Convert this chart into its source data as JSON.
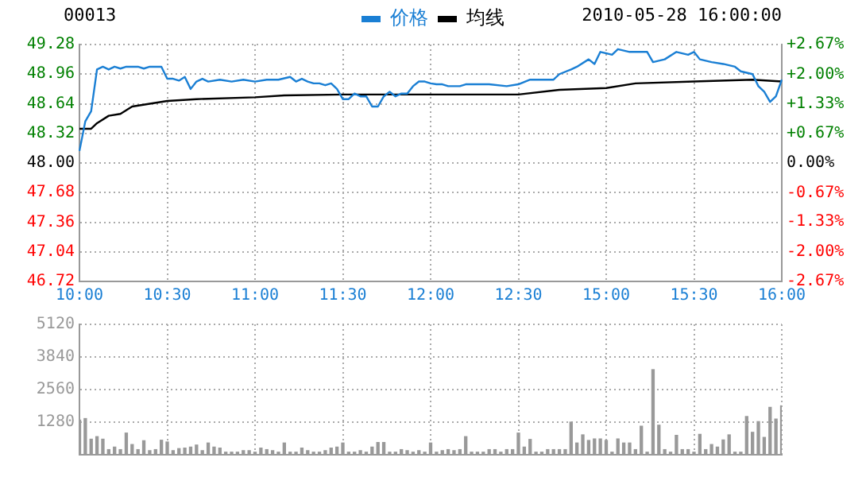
{
  "chart_data": [
    {
      "type": "line",
      "title": "00013",
      "subtitle": "2010-05-28 16:00:00",
      "legend": "top",
      "grid": true,
      "categories": [
        "10:00",
        null,
        null,
        null,
        null,
        null,
        null,
        null,
        null,
        null,
        null,
        null,
        null,
        null,
        null,
        "10:30",
        null,
        null,
        null,
        null,
        null,
        null,
        null,
        null,
        null,
        null,
        null,
        null,
        null,
        null,
        "11:00",
        null,
        null,
        null,
        null,
        null,
        null,
        null,
        null,
        null,
        null,
        null,
        null,
        null,
        null,
        "11:30",
        null,
        null,
        null,
        null,
        null,
        null,
        null,
        null,
        null,
        null,
        null,
        null,
        null,
        null,
        "12:00",
        null,
        null,
        null,
        null,
        null,
        null,
        null,
        null,
        null,
        null,
        null,
        null,
        null,
        null,
        "12:30",
        null,
        null,
        null,
        null,
        null,
        null,
        null,
        null,
        null,
        null,
        null,
        null,
        null,
        null,
        "15:00",
        null,
        null,
        null,
        null,
        null,
        null,
        null,
        null,
        null,
        null,
        null,
        null,
        null,
        null,
        "15:30",
        null,
        null,
        null,
        null,
        null,
        null,
        null,
        null,
        null,
        null,
        null,
        null,
        null,
        null,
        "16:00"
      ],
      "ylim": [
        46.72,
        49.28
      ],
      "yticks": [
        46.72,
        47.04,
        47.36,
        47.68,
        {
          "value": 48,
          "label": "48.00"
        },
        48.32,
        48.64,
        48.96,
        49.28
      ],
      "y2lim": [
        -2.67,
        2.67
      ],
      "y2ticks": [
        {
          "value": -2.67,
          "label": "-2.67%"
        },
        {
          "value": -2,
          "label": "-2.00%"
        },
        {
          "value": -1.33,
          "label": "-1.33%"
        },
        {
          "value": -0.67,
          "label": "-0.67%"
        },
        {
          "value": 0,
          "label": "0.00%"
        },
        {
          "value": 0.67,
          "label": "+0.67%"
        },
        {
          "value": 1.33,
          "label": "+1.33%"
        },
        {
          "value": 2,
          "label": "+2.00%"
        },
        {
          "value": 2.67,
          "label": "+2.67%"
        }
      ],
      "series": [
        {
          "name": "价格",
          "color": "#1a7fd4",
          "values": [
            48.13,
            48.45,
            48.56,
            49.01,
            49.04,
            49.01,
            49.04,
            49.02,
            49.04,
            49.04,
            49.04,
            49.02,
            49.04,
            49.04,
            49.04,
            48.91,
            48.91,
            48.89,
            48.93,
            48.8,
            48.88,
            48.91,
            48.88,
            null,
            48.9,
            null,
            48.88,
            null,
            48.9,
            null,
            48.88,
            null,
            48.9,
            null,
            48.9,
            null,
            48.93,
            48.88,
            48.91,
            48.88,
            48.86,
            48.86,
            48.84,
            48.86,
            48.8,
            48.69,
            48.69,
            48.75,
            48.72,
            48.72,
            48.61,
            48.61,
            48.72,
            48.77,
            48.72,
            48.75,
            48.75,
            48.83,
            48.88,
            48.88,
            48.86,
            48.85,
            48.85,
            48.83,
            null,
            48.83,
            48.85,
            null,
            null,
            null,
            48.85,
            null,
            null,
            48.83,
            null,
            48.85,
            null,
            48.9,
            null,
            null,
            null,
            48.9,
            48.96,
            null,
            49.01,
            49.04,
            null,
            49.12,
            49.07,
            49.2,
            null,
            49.17,
            49.23,
            null,
            49.2,
            null,
            null,
            49.2,
            49.09,
            null,
            49.12,
            null,
            49.2,
            null,
            49.17,
            49.2,
            49.12,
            null,
            49.09,
            null,
            49.07,
            null,
            49.04,
            48.99,
            null,
            48.96,
            48.83,
            48.77,
            48.66,
            48.72,
            48.9
          ]
        },
        {
          "name": "均线",
          "color": "#000000",
          "values": [
            48.37,
            null,
            48.37,
            48.43,
            null,
            48.51,
            null,
            48.53,
            null,
            48.61,
            null,
            null,
            48.64,
            null,
            null,
            48.67,
            null,
            null,
            null,
            null,
            48.69,
            null,
            null,
            null,
            null,
            null,
            null,
            null,
            null,
            null,
            48.71,
            null,
            null,
            null,
            null,
            48.73,
            null,
            null,
            null,
            null,
            null,
            null,
            null,
            null,
            null,
            48.74,
            null,
            null,
            null,
            null,
            null,
            null,
            null,
            null,
            null,
            null,
            null,
            null,
            null,
            null,
            null,
            null,
            null,
            null,
            null,
            null,
            null,
            null,
            null,
            null,
            null,
            null,
            null,
            null,
            null,
            48.74,
            null,
            null,
            null,
            null,
            null,
            null,
            48.79,
            null,
            null,
            null,
            null,
            null,
            null,
            null,
            48.81,
            null,
            null,
            null,
            null,
            48.86,
            null,
            null,
            null,
            null,
            null,
            null,
            null,
            null,
            null,
            48.88,
            null,
            null,
            null,
            null,
            null,
            null,
            null,
            null,
            null,
            48.9,
            null,
            null,
            null,
            null,
            48.88
          ]
        }
      ]
    },
    {
      "type": "bar",
      "grid": true,
      "tick_labels": "y",
      "color": "#999999",
      "categories": [
        null,
        null,
        null,
        null,
        null,
        null,
        null,
        null,
        null,
        null,
        null,
        null,
        null,
        null,
        null,
        null,
        null,
        null,
        null,
        null,
        null,
        null,
        null,
        null,
        null,
        null,
        null,
        null,
        null,
        null,
        null,
        null,
        null,
        null,
        null,
        null,
        null,
        null,
        null,
        null,
        null,
        null,
        null,
        null,
        null,
        null,
        null,
        null,
        null,
        null,
        null,
        null,
        null,
        null,
        null,
        null,
        null,
        null,
        null,
        null,
        null,
        null,
        null,
        null,
        null,
        null,
        null,
        null,
        null,
        null,
        null,
        null,
        null,
        null,
        null,
        null,
        null,
        null,
        null,
        null,
        null,
        null,
        null,
        null,
        null,
        null,
        null,
        null,
        null,
        null,
        null,
        null,
        null,
        null,
        null,
        null,
        null,
        null,
        null,
        null,
        null,
        null,
        null,
        null,
        null,
        null,
        null,
        null,
        null,
        null,
        null,
        null,
        null,
        null,
        null,
        null,
        null,
        null,
        null,
        null,
        null
      ],
      "ylim": [
        0,
        5120
      ],
      "yticks": [
        {
          "value": 0,
          "label": null
        },
        1280,
        2560,
        3840,
        5120
      ],
      "values": [
        1360,
        1420,
        610,
        710,
        610,
        200,
        300,
        200,
        850,
        400,
        200,
        550,
        160,
        200,
        570,
        500,
        160,
        240,
        260,
        300,
        380,
        160,
        460,
        300,
        260,
        100,
        100,
        100,
        160,
        160,
        100,
        260,
        200,
        160,
        100,
        460,
        100,
        100,
        260,
        160,
        100,
        100,
        160,
        260,
        300,
        460,
        100,
        100,
        160,
        100,
        300,
        480,
        480,
        100,
        100,
        200,
        160,
        100,
        160,
        100,
        460,
        100,
        160,
        200,
        160,
        200,
        710,
        100,
        100,
        100,
        200,
        200,
        100,
        200,
        200,
        850,
        300,
        600,
        100,
        100,
        200,
        200,
        200,
        200,
        1280,
        460,
        780,
        560,
        620,
        620,
        560,
        100,
        620,
        460,
        460,
        200,
        1120,
        100,
        3340,
        1160,
        200,
        100,
        760,
        200,
        200,
        100,
        800,
        200,
        400,
        300,
        580,
        780,
        100,
        100,
        1500,
        880,
        1300,
        680,
        1860,
        1400,
        1920
      ]
    }
  ]
}
